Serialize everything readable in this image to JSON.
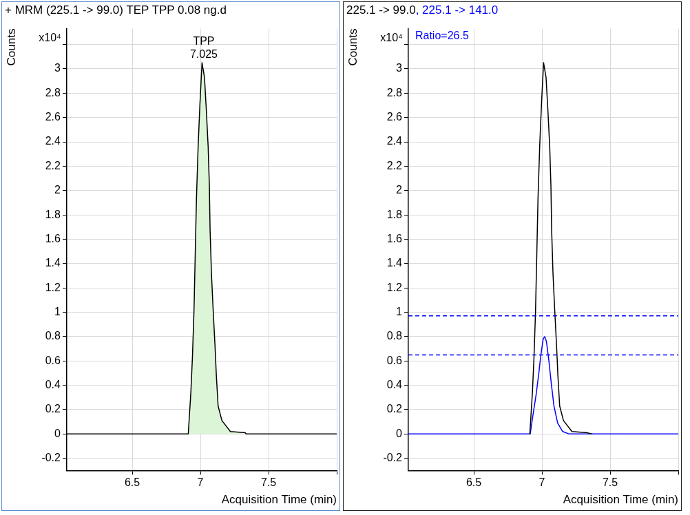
{
  "chart_data": [
    {
      "type": "area",
      "title": "+ MRM (225.1 -> 99.0) TEP TPP 0.08 ng.d",
      "xlabel": "Acquisition Time (min)",
      "ylabel": "Counts",
      "annotations": [
        "x10⁴",
        {
          "text": "TPP\n7.025",
          "x": 7.025,
          "y": 3.05
        }
      ],
      "x": [
        6.02,
        6.911,
        6.93,
        6.942,
        6.953,
        6.962,
        6.971,
        6.984,
        6.997,
        7.012,
        7.03,
        7.044,
        7.057,
        7.066,
        7.071,
        7.081,
        7.094,
        7.107,
        7.117,
        7.13,
        7.158,
        7.22,
        7.33,
        7.335,
        8.0
      ],
      "values": [
        0,
        0,
        0.34,
        0.64,
        1.01,
        1.47,
        1.93,
        2.38,
        2.72,
        3.05,
        2.93,
        2.65,
        2.36,
        2.03,
        1.68,
        1.32,
        1.01,
        0.73,
        0.48,
        0.23,
        0.11,
        0.02,
        0.01,
        0,
        0
      ],
      "color": "#dcf5d6",
      "xlim": [
        6.02,
        8.0
      ],
      "xticks": [
        6.5,
        7,
        7.5,
        {
          "value": 8,
          "label": null
        }
      ],
      "ylim": [
        -0.3,
        3.33
      ],
      "yticks": [
        -0.2,
        0,
        0.2,
        0.4,
        0.6,
        0.8,
        1,
        1.2,
        1.4,
        1.6,
        1.8,
        2,
        2.2,
        2.4,
        2.6,
        2.8,
        3,
        {
          "value": 3.2,
          "label": null
        }
      ],
      "grid": true,
      "marker": "none",
      "line_style": "solid"
    },
    {
      "type": "line",
      "xlabel": "Acquisition Time (min)",
      "ylabel": "Counts",
      "annotations": [
        "x10⁴",
        "Ratio=26.5"
      ],
      "series": [
        {
          "name": "225.1 -> 99.0",
          "color": "#000000",
          "x": [
            6.911,
            6.93,
            6.942,
            6.953,
            6.962,
            6.971,
            6.984,
            6.997,
            7.012,
            7.03,
            7.044,
            7.057,
            7.066,
            7.071,
            7.081,
            7.094,
            7.107,
            7.117,
            7.13,
            7.158,
            7.22,
            7.33,
            7.37
          ],
          "values": [
            0,
            0.34,
            0.64,
            1.01,
            1.47,
            1.93,
            2.38,
            2.72,
            3.05,
            2.93,
            2.65,
            2.36,
            2.03,
            1.68,
            1.32,
            1.01,
            0.73,
            0.48,
            0.23,
            0.11,
            0.02,
            0.01,
            0
          ]
        },
        {
          "name": ", 225.1 -> 141.0",
          "color": "#0000ff",
          "x": [
            6.02,
            6.914,
            6.93,
            6.958,
            6.976,
            6.991,
            7.009,
            7.02,
            7.033,
            7.051,
            7.069,
            7.088,
            7.115,
            7.152,
            7.2,
            8.0
          ],
          "values": [
            0,
            0,
            0.125,
            0.33,
            0.49,
            0.64,
            0.78,
            0.8,
            0.76,
            0.6,
            0.41,
            0.23,
            0.09,
            0.02,
            0,
            0
          ]
        }
      ],
      "ref_lines": [
        {
          "axis": "y",
          "value": 0.97,
          "color": "#0000ff",
          "line_style": "dashed"
        },
        {
          "axis": "y",
          "value": 0.65,
          "color": "#0000ff",
          "line_style": "dashed"
        }
      ],
      "legend": "top left",
      "xlim": [
        6.02,
        8.0
      ],
      "xticks": [
        6.5,
        7,
        7.5,
        {
          "value": 8,
          "label": null
        }
      ],
      "ylim": [
        -0.3,
        3.33
      ],
      "yticks": [
        -0.2,
        0,
        0.2,
        0.4,
        0.6,
        0.8,
        1,
        1.2,
        1.4,
        1.6,
        1.8,
        2,
        2.2,
        2.4,
        2.6,
        2.8,
        3,
        {
          "value": 3.2,
          "label": null
        }
      ],
      "grid": true,
      "marker": "none",
      "line_style": "solid"
    }
  ]
}
